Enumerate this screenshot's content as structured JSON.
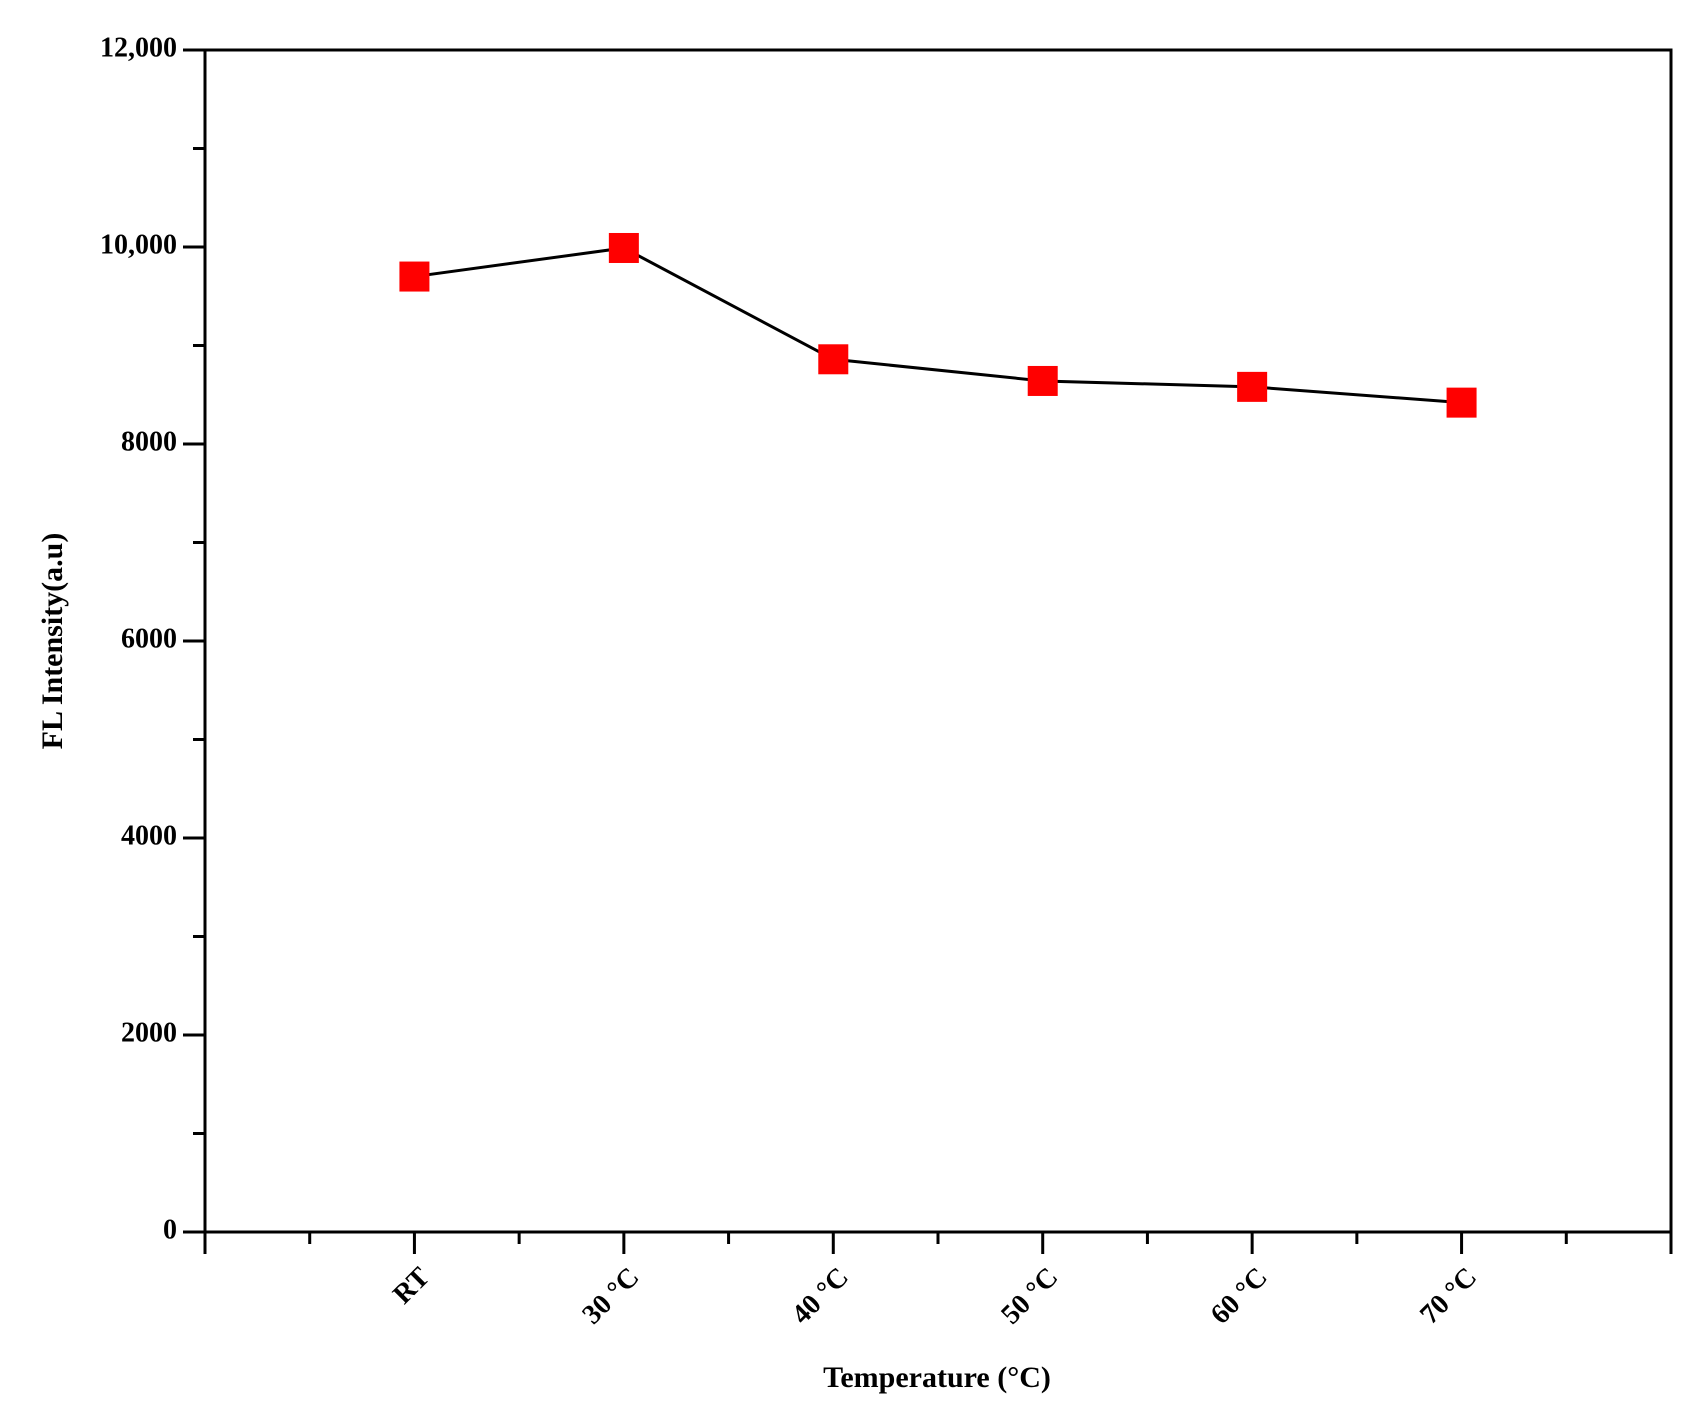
{
  "chart_data": {
    "type": "line",
    "x_label": "Temperature (°C)",
    "y_label": "FL Intensity(a.u)",
    "categories": [
      "RT",
      "30 °C",
      "40 °C",
      "50 °C",
      "60 °C",
      "70 °C"
    ],
    "series": [
      {
        "color": "#ff0000",
        "line_color": "#000000",
        "values": [
          9700,
          9990,
          8860,
          8640,
          8580,
          8420
        ]
      }
    ],
    "ylim": [
      0,
      12000
    ],
    "yticks": [
      0,
      2000,
      4000,
      6000,
      8000,
      {
        "value": 10000,
        "label": "10,000"
      },
      {
        "value": 12000,
        "label": "12,000"
      }
    ],
    "grid": false
  }
}
